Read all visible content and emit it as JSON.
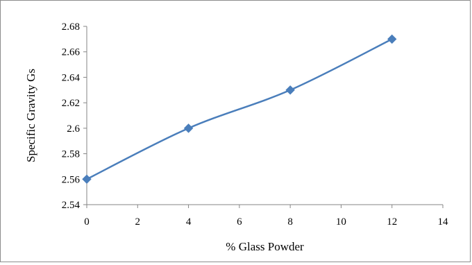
{
  "chart_data": {
    "type": "line",
    "title": "",
    "xlabel": "% Glass Powder",
    "ylabel": "Specific  Gravity Gs",
    "xlim": [
      0,
      14
    ],
    "ylim": [
      2.54,
      2.68
    ],
    "x_ticks": [
      0,
      2,
      4,
      6,
      8,
      10,
      12,
      14
    ],
    "y_ticks": [
      2.54,
      2.56,
      2.58,
      2.6,
      2.62,
      2.64,
      2.66,
      2.68
    ],
    "y_tick_labels": [
      "2.54",
      "2.56",
      "2.58",
      "2.6",
      "2.62",
      "2.64",
      "2.66",
      "2.68"
    ],
    "grid": false,
    "legend": "none",
    "series": [
      {
        "x": [
          0,
          4,
          8,
          12
        ],
        "values": [
          2.56,
          2.6,
          2.63,
          2.67
        ],
        "color": "#4a7ebb",
        "marker": "diamond",
        "smooth": true
      }
    ]
  }
}
